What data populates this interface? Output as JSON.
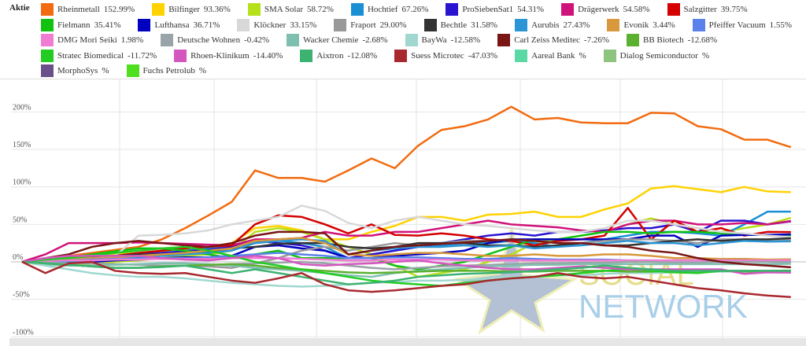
{
  "legend_title": "Aktie",
  "watermark": {
    "line1": "SOCIAL",
    "line2": "NETWORK"
  },
  "chart_data": {
    "type": "line",
    "title": "",
    "xlabel": "",
    "ylabel": "",
    "ylim": [
      -100,
      240
    ],
    "yticks": [
      -100,
      -50,
      0,
      50,
      100,
      150,
      200
    ],
    "ytick_labels": [
      "-100%",
      "-50%",
      "0%",
      "50%",
      "100%",
      "150%",
      "200%"
    ],
    "grid": true,
    "legend_placement": "top",
    "series": [
      {
        "name": "Rheinmetall",
        "label": "152.99%",
        "color": "#f26b10",
        "values": [
          0,
          4,
          8,
          12,
          16,
          20,
          30,
          45,
          62,
          80,
          122,
          112,
          112,
          107,
          122,
          138,
          125,
          155,
          176,
          181,
          190,
          207,
          190,
          192,
          186,
          185,
          185,
          199,
          198,
          181,
          177,
          163,
          163,
          153
        ]
      },
      {
        "name": "Bilfinger",
        "label": "93.36%",
        "color": "#ffd200",
        "values": [
          0,
          2,
          5,
          8,
          10,
          12,
          14,
          18,
          20,
          25,
          45,
          48,
          42,
          30,
          30,
          40,
          48,
          60,
          60,
          55,
          63,
          64,
          67,
          60,
          60,
          70,
          78,
          98,
          101,
          97,
          93,
          100,
          94,
          93
        ]
      },
      {
        "name": "SMA Solar",
        "label": "58.72%",
        "color": "#b5e01a",
        "values": [
          0,
          -3,
          -5,
          -2,
          0,
          2,
          5,
          8,
          10,
          15,
          40,
          45,
          40,
          30,
          20,
          10,
          -5,
          -20,
          -15,
          -10,
          0,
          10,
          25,
          30,
          35,
          40,
          50,
          58,
          50,
          45,
          40,
          45,
          50,
          58.7
        ]
      },
      {
        "name": "Hochtief",
        "label": "67.26%",
        "color": "#1a8fd4",
        "values": [
          0,
          2,
          4,
          6,
          8,
          10,
          12,
          15,
          18,
          20,
          25,
          28,
          25,
          20,
          5,
          10,
          15,
          20,
          22,
          25,
          25,
          28,
          25,
          20,
          25,
          30,
          35,
          40,
          40,
          38,
          35,
          50,
          67,
          67
        ]
      },
      {
        "name": "ProSiebenSat1",
        "label": "54.31%",
        "color": "#2a14d0",
        "values": [
          0,
          2,
          4,
          6,
          8,
          10,
          12,
          14,
          16,
          20,
          28,
          25,
          22,
          15,
          5,
          10,
          15,
          20,
          25,
          30,
          35,
          38,
          35,
          40,
          40,
          42,
          45,
          45,
          50,
          40,
          55,
          55,
          50,
          54
        ]
      },
      {
        "name": "Drägerwerk",
        "label": "54.58%",
        "color": "#d0137a",
        "values": [
          0,
          10,
          25,
          25,
          25,
          26,
          25,
          24,
          23,
          22,
          30,
          30,
          32,
          40,
          35,
          35,
          40,
          40,
          45,
          50,
          55,
          50,
          48,
          46,
          42,
          40,
          50,
          55,
          55,
          50,
          50,
          52,
          50,
          54.6
        ]
      },
      {
        "name": "Salzgitter",
        "label": "39.75%",
        "color": "#d40000",
        "values": [
          0,
          2,
          4,
          6,
          8,
          12,
          15,
          18,
          20,
          22,
          50,
          62,
          60,
          50,
          38,
          50,
          36,
          35,
          38,
          35,
          30,
          28,
          22,
          28,
          30,
          35,
          72,
          30,
          55,
          40,
          45,
          35,
          40,
          39.8
        ]
      },
      {
        "name": "Fielmann",
        "label": "35.41%",
        "color": "#11c211",
        "values": [
          0,
          3,
          6,
          10,
          14,
          18,
          18,
          15,
          10,
          5,
          10,
          15,
          5,
          5,
          5,
          5,
          -5,
          -10,
          -5,
          0,
          10,
          20,
          30,
          30,
          35,
          40,
          40,
          38,
          40,
          40,
          38,
          36,
          36,
          35.4
        ]
      },
      {
        "name": "Lufthansa",
        "label": "36.71%",
        "color": "#0000c0",
        "values": [
          0,
          0,
          -2,
          0,
          2,
          3,
          5,
          6,
          6,
          8,
          20,
          22,
          18,
          15,
          5,
          5,
          8,
          10,
          12,
          15,
          25,
          30,
          30,
          30,
          30,
          30,
          30,
          35,
          35,
          20,
          35,
          36,
          36,
          36.7
        ]
      },
      {
        "name": "Klöckner",
        "label": "33.15%",
        "color": "#d8d8d8",
        "values": [
          0,
          2,
          4,
          6,
          8,
          35,
          36,
          38,
          42,
          50,
          55,
          60,
          75,
          68,
          52,
          45,
          55,
          60,
          55,
          50,
          48,
          45,
          42,
          40,
          40,
          45,
          55,
          55,
          50,
          45,
          40,
          38,
          35,
          33
        ]
      },
      {
        "name": "Fraport",
        "label": "29.00%",
        "color": "#999999",
        "values": [
          0,
          -2,
          -4,
          -6,
          -8,
          -8,
          -6,
          -5,
          -6,
          -8,
          -2,
          5,
          15,
          20,
          15,
          20,
          25,
          22,
          25,
          28,
          28,
          30,
          28,
          25,
          25,
          28,
          30,
          30,
          28,
          25,
          30,
          30,
          28,
          29
        ]
      },
      {
        "name": "Bechtle",
        "label": "31.58%",
        "color": "#333333",
        "values": [
          0,
          2,
          4,
          6,
          8,
          10,
          10,
          12,
          14,
          18,
          20,
          24,
          25,
          25,
          20,
          18,
          20,
          25,
          25,
          25,
          22,
          22,
          20,
          22,
          25,
          22,
          22,
          25,
          28,
          30,
          28,
          30,
          30,
          31.6
        ]
      },
      {
        "name": "Aurubis",
        "label": "27.43%",
        "color": "#2b95d5",
        "values": [
          0,
          -2,
          0,
          2,
          4,
          6,
          8,
          10,
          12,
          15,
          25,
          28,
          30,
          28,
          10,
          15,
          18,
          20,
          20,
          22,
          20,
          22,
          18,
          20,
          22,
          25,
          28,
          25,
          25,
          22,
          25,
          28,
          27,
          27.4
        ]
      },
      {
        "name": "Evonik",
        "label": "3.44%",
        "color": "#d8983c",
        "values": [
          0,
          2,
          4,
          5,
          6,
          8,
          10,
          12,
          15,
          18,
          28,
          30,
          32,
          25,
          10,
          8,
          10,
          12,
          12,
          10,
          8,
          8,
          10,
          8,
          8,
          10,
          10,
          8,
          5,
          5,
          4,
          4,
          3,
          3.4
        ]
      },
      {
        "name": "Pfeiffer Vacuum",
        "label": "1.55%",
        "color": "#5b82ea",
        "values": [
          0,
          1,
          2,
          3,
          4,
          4,
          5,
          5,
          6,
          8,
          10,
          12,
          10,
          8,
          5,
          5,
          6,
          6,
          5,
          4,
          4,
          5,
          4,
          3,
          3,
          3,
          2,
          2,
          2,
          2,
          2,
          2,
          1.5,
          1.55
        ]
      },
      {
        "name": "DMG Mori Seiki",
        "label": "1.98%",
        "color": "#f07cd4",
        "values": [
          0,
          1,
          2,
          2,
          3,
          3,
          4,
          4,
          4,
          5,
          5,
          5,
          4,
          3,
          2,
          2,
          3,
          3,
          3,
          2,
          2,
          2,
          2,
          2,
          2,
          2,
          2,
          2,
          2,
          2,
          2,
          2,
          2,
          1.98
        ]
      },
      {
        "name": "Deutsche Wohnen",
        "label": "-0.42%",
        "color": "#9aa4a8",
        "values": [
          0,
          -1,
          -2,
          -2,
          -3,
          -4,
          -5,
          -5,
          -4,
          -3,
          -2,
          -1,
          0,
          -2,
          -5,
          -8,
          -10,
          -8,
          -6,
          -5,
          -4,
          -3,
          -2,
          -2,
          -1,
          -1,
          0,
          0,
          -1,
          -1,
          0,
          0,
          0,
          -0.42
        ]
      },
      {
        "name": "Wacker Chemie",
        "label": "-2.68%",
        "color": "#7fbfb0",
        "values": [
          0,
          -3,
          -5,
          -5,
          -4,
          -3,
          -2,
          -2,
          -3,
          -5,
          -8,
          -10,
          -12,
          -15,
          -18,
          -20,
          -15,
          -12,
          -10,
          -8,
          -6,
          -5,
          -4,
          -4,
          -3,
          -3,
          -3,
          -3,
          -3,
          -3,
          -3,
          -3,
          -3,
          -2.68
        ]
      },
      {
        "name": "BayWa",
        "label": "-12.58%",
        "color": "#a0d8d0",
        "values": [
          0,
          -5,
          -10,
          -15,
          -18,
          -20,
          -20,
          -22,
          -25,
          -28,
          -30,
          -32,
          -33,
          -32,
          -30,
          -28,
          -27,
          -25,
          -25,
          -24,
          -22,
          -20,
          -20,
          -18,
          -18,
          -16,
          -15,
          -15,
          -14,
          -14,
          -13,
          -13,
          -13,
          -12.58
        ]
      },
      {
        "name": "Carl Zeiss Meditec",
        "label": "-7.26%",
        "color": "#7a1515",
        "values": [
          0,
          5,
          10,
          20,
          25,
          28,
          25,
          22,
          20,
          25,
          35,
          40,
          40,
          38,
          10,
          15,
          20,
          22,
          24,
          26,
          28,
          30,
          28,
          25,
          25,
          22,
          20,
          15,
          12,
          5,
          0,
          -3,
          -5,
          -7.26
        ]
      },
      {
        "name": "BB Biotech",
        "label": "-12.68%",
        "color": "#5bb030",
        "values": [
          0,
          -2,
          -4,
          -6,
          -8,
          -8,
          -6,
          -5,
          -4,
          -3,
          -5,
          -8,
          -10,
          -12,
          -14,
          -15,
          -14,
          -13,
          -12,
          -12,
          -12,
          -13,
          -13,
          -12,
          -12,
          -12,
          -13,
          -13,
          -12,
          -12,
          -12,
          -13,
          -13,
          -12.68
        ]
      },
      {
        "name": "Stratec Biomedical",
        "label": "-11.72%",
        "color": "#22cc22",
        "values": [
          0,
          3,
          5,
          8,
          12,
          15,
          18,
          20,
          15,
          8,
          0,
          -5,
          -10,
          -15,
          -20,
          -25,
          -28,
          -30,
          -32,
          -28,
          -25,
          -22,
          -20,
          -18,
          -15,
          -12,
          -10,
          -12,
          -14,
          -15,
          -12,
          -12,
          -12,
          -11.72
        ]
      },
      {
        "name": "Rhoen-Klinikum",
        "label": "-14.40%",
        "color": "#d457c0",
        "values": [
          0,
          5,
          8,
          8,
          8,
          8,
          5,
          3,
          2,
          5,
          8,
          5,
          -3,
          -5,
          -3,
          -2,
          0,
          2,
          -2,
          -5,
          -8,
          -10,
          -10,
          -8,
          -6,
          -8,
          -10,
          -10,
          -10,
          -10,
          -10,
          -16,
          -14,
          -14.4
        ]
      },
      {
        "name": "Aixtron",
        "label": "-12.08%",
        "color": "#3cb371",
        "values": [
          0,
          -2,
          -4,
          -6,
          -8,
          -8,
          -7,
          -5,
          -10,
          -15,
          -10,
          -15,
          -20,
          -25,
          -30,
          -28,
          -25,
          -20,
          -18,
          -16,
          -15,
          -14,
          -12,
          -10,
          -8,
          -5,
          -8,
          -10,
          -12,
          -12,
          -12,
          -12,
          -12,
          -12.08
        ]
      },
      {
        "name": "Suess Microtec",
        "label": "-47.03%",
        "color": "#a8282e",
        "values": [
          0,
          -15,
          -2,
          0,
          -12,
          -15,
          -16,
          -15,
          -20,
          -25,
          -28,
          -22,
          -15,
          -30,
          -38,
          -40,
          -38,
          -35,
          -32,
          -30,
          -25,
          -22,
          -20,
          -15,
          -20,
          -22,
          -20,
          -25,
          -30,
          -35,
          -38,
          -42,
          -45,
          -47
        ]
      },
      {
        "name": "Aareal Bank",
        "label": "%",
        "color": "#5ad8a6",
        "values": []
      },
      {
        "name": "Dialog Semiconductor",
        "label": "%",
        "color": "#8fc47e",
        "values": []
      },
      {
        "name": "MorphoSys",
        "label": "%",
        "color": "#6a4f8a",
        "values": []
      },
      {
        "name": "Fuchs Petrolub",
        "label": "%",
        "color": "#4ee01e",
        "values": []
      }
    ]
  }
}
